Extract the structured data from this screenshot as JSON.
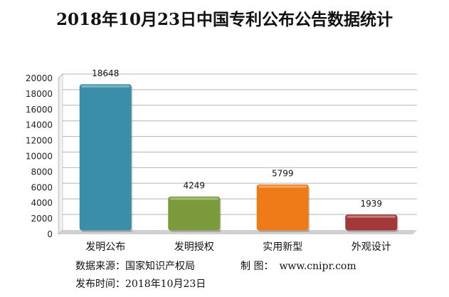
{
  "chart_data": {
    "type": "bar",
    "title": "2018年10月23日中国专利公布公告数据统计",
    "categories": [
      "发明公布",
      "发明授权",
      "实用新型",
      "外观设计"
    ],
    "values": [
      18648,
      4249,
      5799,
      1939
    ],
    "data_labels": [
      "18648",
      "4249",
      "5799",
      "1939"
    ],
    "bar_colors": [
      "#3a8ea8",
      "#7a9a3c",
      "#ee7a18",
      "#a2383a"
    ],
    "ylim": [
      0,
      20000
    ],
    "yticks": [
      "0",
      "2000",
      "4000",
      "6000",
      "8000",
      "10000",
      "12000",
      "14000",
      "16000",
      "18000",
      "20000"
    ],
    "grid": true,
    "legend": "none"
  },
  "footer": {
    "source_label": "数据来源：",
    "source_value": "国家知识产权局",
    "maker_label": "制  图：",
    "maker_value": "www.cnipr.com",
    "date_label": "发布时间：",
    "date_value": "2018年10月23日"
  }
}
